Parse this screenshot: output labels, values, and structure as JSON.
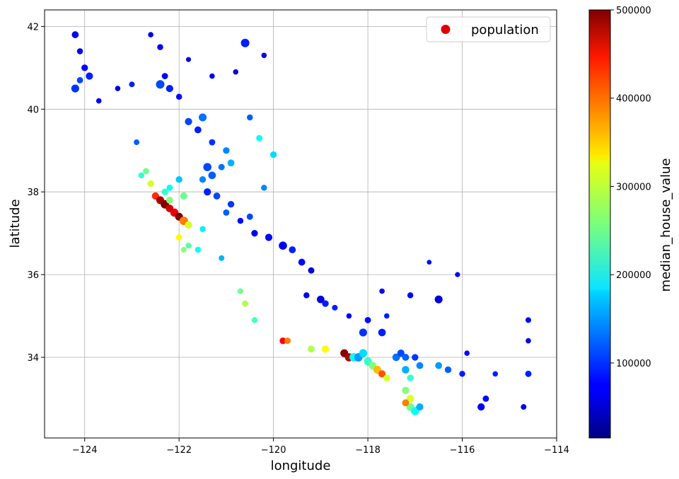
{
  "chart_data": {
    "type": "scatter",
    "xlabel": "longitude",
    "ylabel": "latitude",
    "xlim": [
      -124.85,
      -114.0
    ],
    "ylim": [
      32.05,
      42.4
    ],
    "xticks": [
      -124,
      -122,
      -120,
      -118,
      -116,
      -114
    ],
    "yticks": [
      34,
      36,
      38,
      40,
      42
    ],
    "grid": true,
    "legend": {
      "label": "population",
      "placement": "top-right",
      "marker_color": "#e00000"
    },
    "colorbar": {
      "label": "median_house_value",
      "colormap": "jet",
      "range": [
        14999,
        500001
      ],
      "ticks": [
        100000,
        200000,
        300000,
        400000,
        500000
      ]
    },
    "series": [
      {
        "name": "population",
        "points": [
          [
            -124.2,
            41.8,
            70000,
            1.5
          ],
          [
            -124.1,
            41.4,
            60000,
            1.2
          ],
          [
            -124.0,
            41.0,
            80000,
            1.4
          ],
          [
            -123.9,
            40.8,
            90000,
            1.6
          ],
          [
            -124.1,
            40.7,
            110000,
            1.3
          ],
          [
            -124.2,
            40.5,
            100000,
            1.8
          ],
          [
            -123.7,
            40.2,
            70000,
            1.0
          ],
          [
            -123.3,
            40.5,
            60000,
            1.0
          ],
          [
            -123.0,
            40.6,
            90000,
            1.1
          ],
          [
            -122.6,
            41.8,
            60000,
            1.0
          ],
          [
            -122.4,
            41.5,
            70000,
            1.2
          ],
          [
            -122.3,
            40.8,
            80000,
            1.3
          ],
          [
            -122.4,
            40.6,
            110000,
            2.0
          ],
          [
            -122.2,
            40.5,
            90000,
            1.6
          ],
          [
            -122.0,
            40.3,
            80000,
            1.2
          ],
          [
            -121.8,
            41.2,
            60000,
            0.9
          ],
          [
            -121.3,
            40.8,
            70000,
            1.0
          ],
          [
            -120.8,
            40.9,
            60000,
            1.0
          ],
          [
            -120.6,
            41.6,
            90000,
            2.0
          ],
          [
            -120.2,
            41.3,
            70000,
            1.0
          ],
          [
            -121.5,
            39.8,
            130000,
            1.8
          ],
          [
            -121.8,
            39.7,
            110000,
            1.6
          ],
          [
            -121.6,
            39.5,
            90000,
            1.5
          ],
          [
            -121.3,
            39.2,
            100000,
            1.3
          ],
          [
            -121.0,
            39.0,
            140000,
            1.4
          ],
          [
            -120.9,
            38.7,
            160000,
            1.5
          ],
          [
            -121.1,
            38.6,
            130000,
            1.3
          ],
          [
            -121.4,
            38.6,
            110000,
            1.9
          ],
          [
            -121.3,
            38.4,
            120000,
            1.7
          ],
          [
            -121.5,
            38.3,
            140000,
            1.4
          ],
          [
            -121.4,
            38.0,
            90000,
            1.6
          ],
          [
            -121.2,
            37.9,
            110000,
            1.5
          ],
          [
            -120.9,
            37.7,
            100000,
            1.4
          ],
          [
            -121.0,
            37.5,
            120000,
            1.3
          ],
          [
            -120.7,
            37.3,
            80000,
            1.2
          ],
          [
            -120.4,
            37.0,
            70000,
            1.4
          ],
          [
            -120.1,
            36.9,
            80000,
            1.6
          ],
          [
            -119.8,
            36.7,
            70000,
            1.9
          ],
          [
            -119.6,
            36.6,
            90000,
            1.5
          ],
          [
            -119.4,
            36.3,
            80000,
            1.5
          ],
          [
            -119.2,
            36.1,
            60000,
            1.3
          ],
          [
            -119.3,
            35.5,
            70000,
            1.2
          ],
          [
            -119.0,
            35.4,
            60000,
            1.7
          ],
          [
            -118.9,
            35.3,
            90000,
            1.4
          ],
          [
            -122.6,
            38.2,
            300000,
            1.4
          ],
          [
            -122.5,
            37.9,
            420000,
            1.6
          ],
          [
            -122.4,
            37.8,
            480000,
            1.8
          ],
          [
            -122.3,
            37.7,
            500000,
            2.0
          ],
          [
            -122.2,
            37.6,
            460000,
            1.7
          ],
          [
            -122.1,
            37.5,
            450000,
            1.9
          ],
          [
            -122.0,
            37.4,
            500000,
            1.8
          ],
          [
            -121.9,
            37.3,
            380000,
            2.0
          ],
          [
            -121.8,
            37.2,
            300000,
            1.6
          ],
          [
            -122.2,
            37.8,
            260000,
            1.5
          ],
          [
            -122.3,
            38.0,
            220000,
            1.4
          ],
          [
            -121.9,
            37.9,
            250000,
            1.6
          ],
          [
            -122.0,
            36.9,
            320000,
            1.3
          ],
          [
            -121.8,
            36.7,
            240000,
            1.2
          ],
          [
            -121.6,
            36.6,
            200000,
            1.2
          ],
          [
            -121.9,
            36.6,
            260000,
            1.1
          ],
          [
            -122.7,
            38.5,
            250000,
            1.3
          ],
          [
            -122.8,
            38.4,
            220000,
            1.2
          ],
          [
            -122.0,
            38.3,
            170000,
            1.4
          ],
          [
            -122.2,
            38.1,
            200000,
            1.3
          ],
          [
            -120.7,
            35.6,
            250000,
            1.1
          ],
          [
            -120.6,
            35.3,
            280000,
            1.3
          ],
          [
            -120.4,
            34.9,
            230000,
            1.2
          ],
          [
            -119.8,
            34.4,
            440000,
            1.4
          ],
          [
            -119.7,
            34.4,
            380000,
            1.3
          ],
          [
            -119.2,
            34.2,
            280000,
            1.5
          ],
          [
            -118.9,
            34.2,
            320000,
            1.6
          ],
          [
            -118.5,
            34.1,
            500000,
            1.8
          ],
          [
            -118.4,
            34.0,
            480000,
            1.9
          ],
          [
            -118.3,
            34.0,
            200000,
            2.0
          ],
          [
            -118.2,
            34.0,
            150000,
            2.0
          ],
          [
            -118.1,
            34.1,
            180000,
            1.9
          ],
          [
            -118.0,
            33.9,
            220000,
            1.8
          ],
          [
            -117.9,
            33.8,
            260000,
            1.7
          ],
          [
            -117.8,
            33.7,
            350000,
            1.8
          ],
          [
            -117.7,
            33.6,
            400000,
            1.6
          ],
          [
            -117.6,
            33.5,
            300000,
            1.5
          ],
          [
            -117.4,
            34.0,
            130000,
            1.7
          ],
          [
            -117.3,
            34.1,
            110000,
            1.6
          ],
          [
            -117.2,
            34.0,
            120000,
            1.5
          ],
          [
            -117.0,
            34.0,
            100000,
            1.4
          ],
          [
            -116.9,
            33.8,
            140000,
            1.5
          ],
          [
            -117.2,
            33.7,
            160000,
            1.7
          ],
          [
            -117.1,
            33.5,
            220000,
            1.4
          ],
          [
            -117.2,
            33.2,
            260000,
            1.6
          ],
          [
            -117.1,
            33.0,
            300000,
            1.7
          ],
          [
            -117.1,
            32.8,
            250000,
            1.8
          ],
          [
            -117.0,
            32.7,
            200000,
            1.9
          ],
          [
            -116.9,
            32.8,
            160000,
            1.6
          ],
          [
            -117.2,
            32.9,
            380000,
            1.5
          ],
          [
            -116.5,
            33.8,
            150000,
            1.5
          ],
          [
            -116.3,
            33.7,
            120000,
            1.4
          ],
          [
            -116.0,
            33.6,
            90000,
            1.2
          ],
          [
            -115.6,
            32.8,
            70000,
            1.6
          ],
          [
            -115.5,
            33.0,
            80000,
            1.3
          ],
          [
            -115.3,
            33.6,
            90000,
            1.0
          ],
          [
            -116.5,
            35.4,
            60000,
            1.8
          ],
          [
            -117.1,
            35.5,
            80000,
            1.2
          ],
          [
            -117.7,
            35.6,
            70000,
            1.0
          ],
          [
            -117.7,
            34.6,
            90000,
            1.7
          ],
          [
            -118.1,
            34.6,
            100000,
            1.8
          ],
          [
            -118.0,
            34.9,
            80000,
            1.3
          ],
          [
            -118.4,
            35.0,
            70000,
            1.0
          ],
          [
            -118.7,
            35.2,
            90000,
            1.1
          ],
          [
            -114.6,
            34.9,
            70000,
            1.1
          ],
          [
            -114.6,
            34.4,
            60000,
            1.0
          ],
          [
            -114.6,
            33.6,
            90000,
            1.3
          ],
          [
            -114.7,
            32.8,
            70000,
            1.1
          ],
          [
            -116.1,
            36.0,
            70000,
            0.9
          ],
          [
            -116.7,
            36.3,
            80000,
            0.8
          ],
          [
            -117.6,
            35.0,
            90000,
            1.0
          ],
          [
            -115.9,
            34.1,
            80000,
            1.0
          ],
          [
            -121.5,
            37.1,
            190000,
            1.2
          ],
          [
            -121.1,
            36.4,
            160000,
            1.1
          ],
          [
            -120.5,
            37.4,
            110000,
            1.3
          ],
          [
            -120.2,
            38.1,
            140000,
            1.2
          ],
          [
            -120.0,
            38.9,
            180000,
            1.4
          ],
          [
            -120.3,
            39.3,
            200000,
            1.3
          ],
          [
            -120.5,
            39.8,
            120000,
            1.2
          ],
          [
            -122.9,
            39.2,
            120000,
            1.1
          ]
        ]
      }
    ]
  }
}
